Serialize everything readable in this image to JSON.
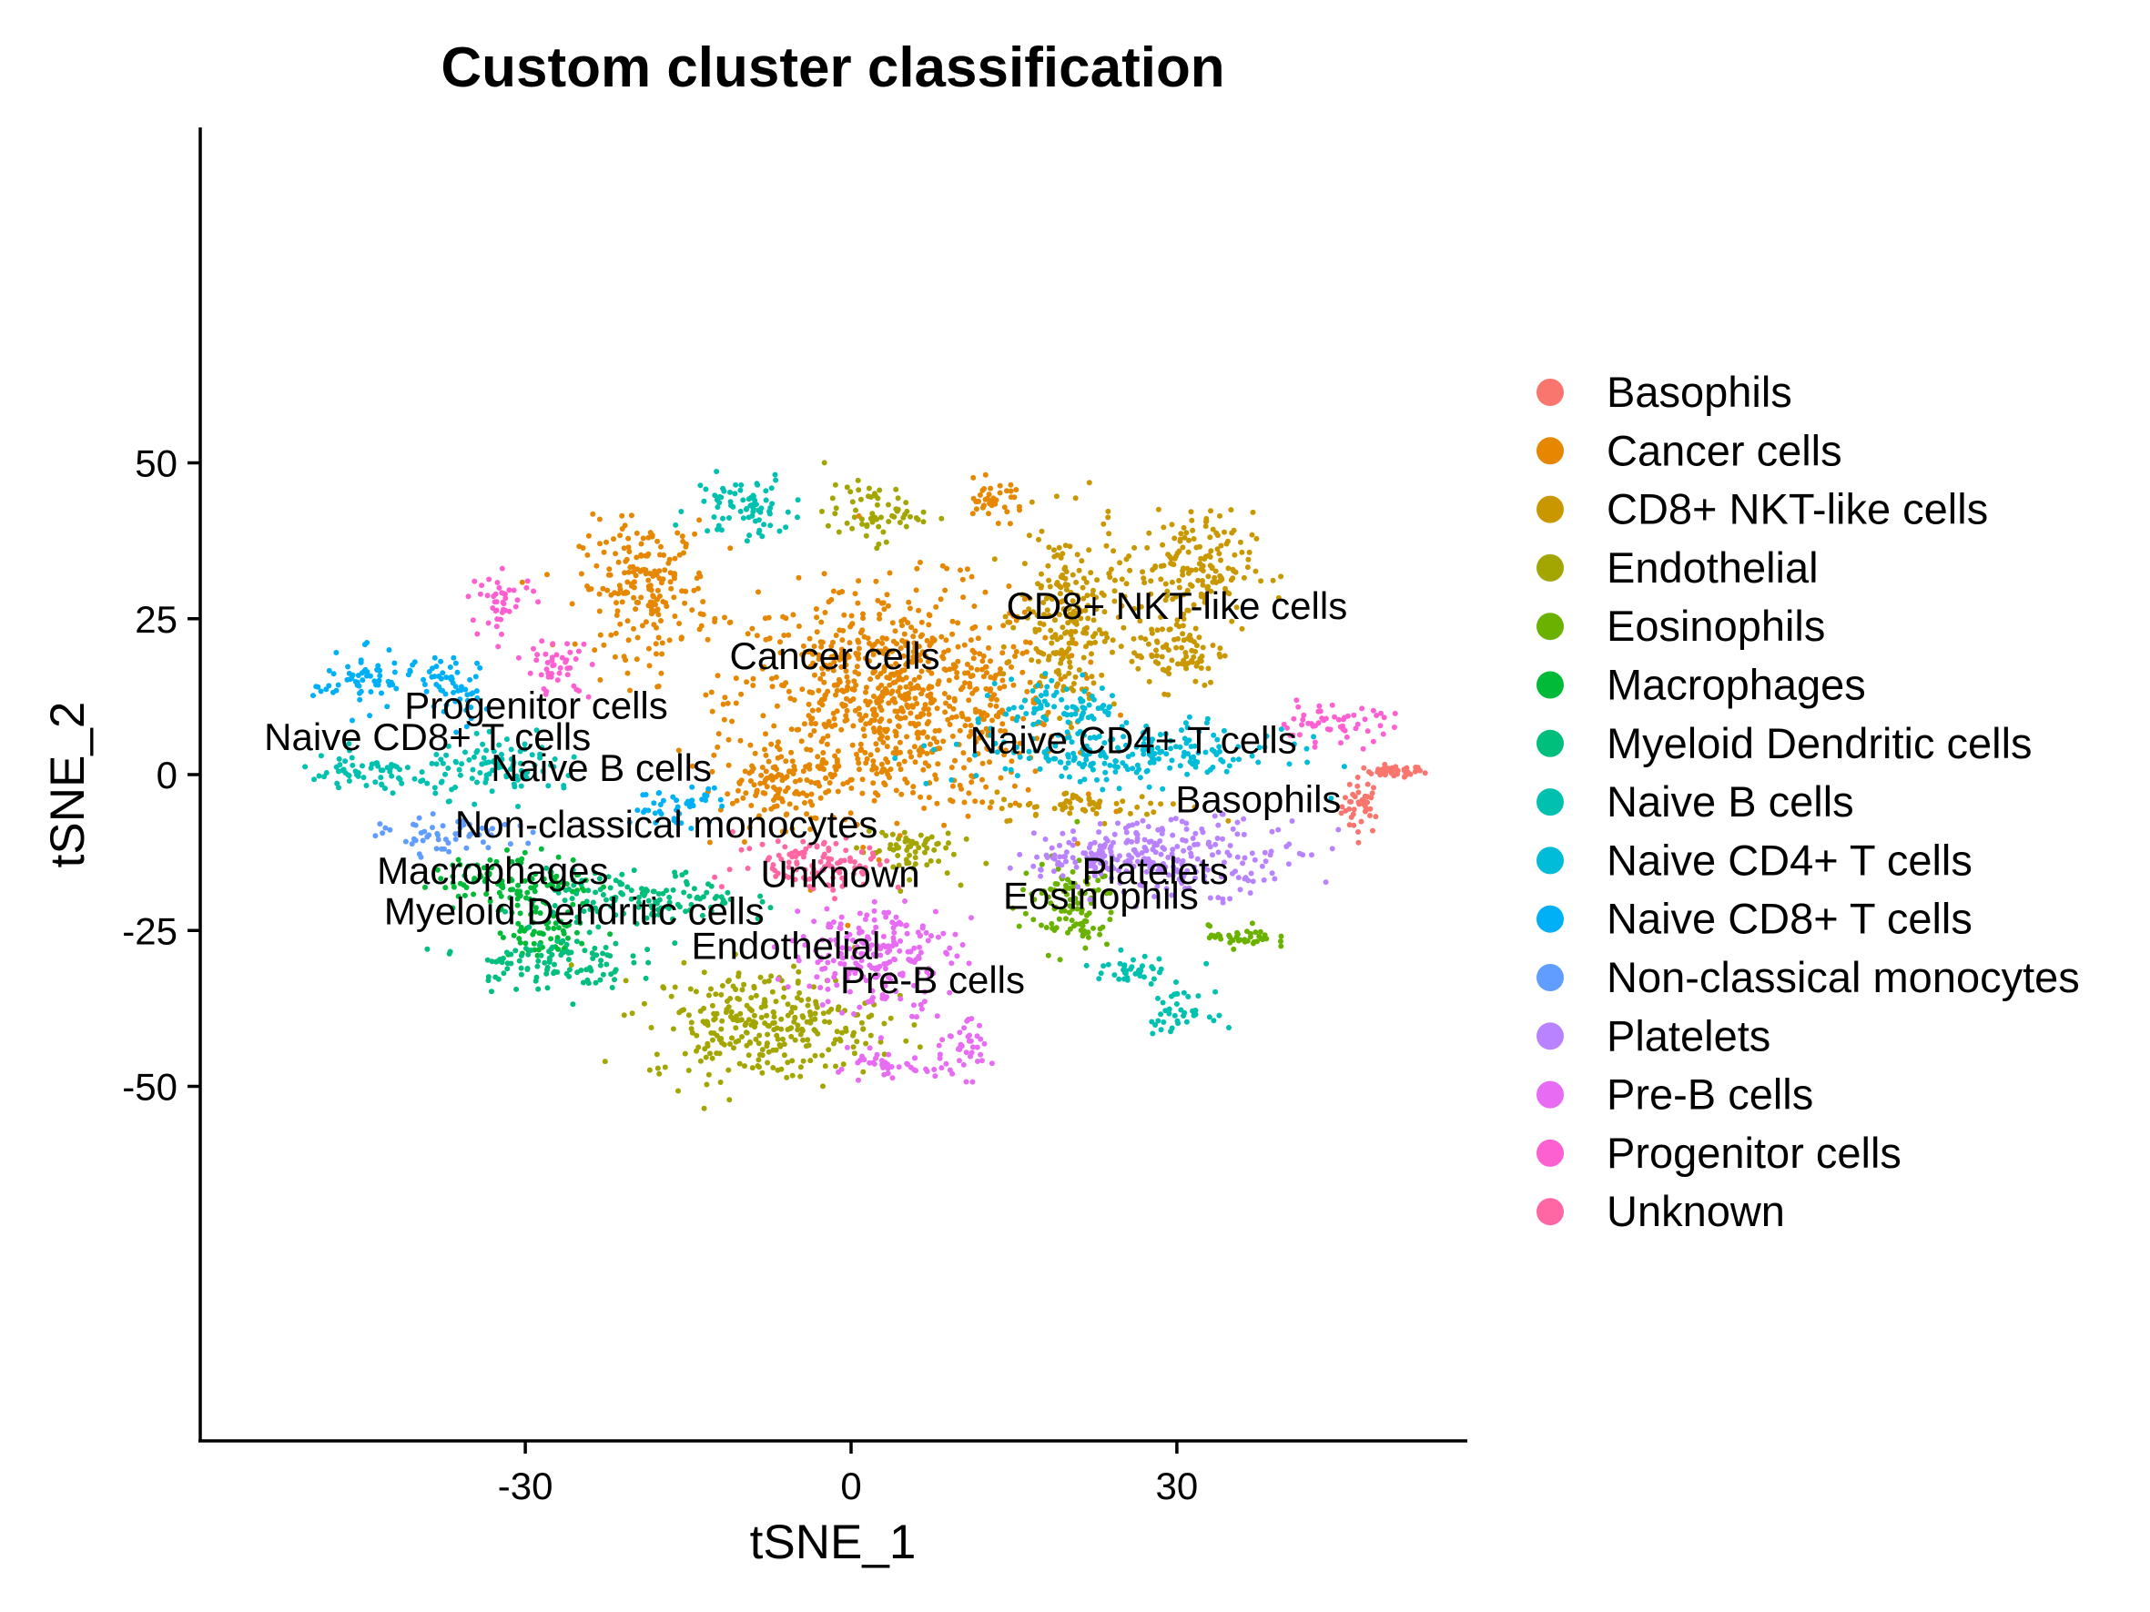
{
  "chart_data": {
    "type": "scatter",
    "title": "Custom cluster classification",
    "xlabel": "tSNE_1",
    "ylabel": "tSNE_2",
    "xlim": [
      -60,
      56
    ],
    "ylim": [
      -53,
      52
    ],
    "xticks": [
      -30,
      0,
      30
    ],
    "yticks": [
      -50,
      -25,
      0,
      25,
      50
    ],
    "xtick_labels": [
      "-30",
      "0",
      "30"
    ],
    "ytick_labels": [
      "-50",
      "-25",
      "0",
      "25",
      "50"
    ],
    "grid": false,
    "legend": "right",
    "series": [
      {
        "name": "Basophils",
        "color": "#F8766D",
        "clusters": [
          [
            47,
            -5,
            1.2,
            3
          ],
          [
            50,
            0.5,
            1.8,
            0.6
          ]
        ]
      },
      {
        "name": "Cancer cells",
        "color": "#E58700",
        "clusters": [
          [
            4,
            12,
            10,
            12
          ],
          [
            -19,
            30,
            4,
            7
          ],
          [
            -6,
            -2,
            4,
            4
          ],
          [
            13,
            44,
            2,
            2
          ]
        ]
      },
      {
        "name": "CD8+ NKT-like cells",
        "color": "#C99800",
        "clusters": [
          [
            20,
            25,
            3,
            10
          ],
          [
            31,
            33,
            4,
            6
          ],
          [
            30,
            20,
            3,
            4
          ],
          [
            22,
            -5,
            6,
            1.5
          ]
        ]
      },
      {
        "name": "Endothelial",
        "color": "#A3A500",
        "clusters": [
          [
            -8,
            -40,
            7,
            6
          ],
          [
            2,
            42,
            3,
            3
          ],
          [
            5,
            -12,
            3,
            3
          ]
        ]
      },
      {
        "name": "Eosinophils",
        "color": "#6BB100",
        "clusters": [
          [
            20,
            -21,
            3,
            5
          ],
          [
            36,
            -26,
            2,
            1.2
          ]
        ]
      },
      {
        "name": "Macrophages",
        "color": "#00BA38",
        "clusters": [
          [
            -31,
            -17,
            5,
            3
          ],
          [
            -28,
            -25,
            3,
            3
          ]
        ]
      },
      {
        "name": "Myeloid Dendritic cells",
        "color": "#00BF7D",
        "clusters": [
          [
            -28,
            -30,
            5,
            3
          ],
          [
            -19,
            -20,
            6,
            3
          ]
        ]
      },
      {
        "name": "Naive B cells",
        "color": "#00C0AF",
        "clusters": [
          [
            -32,
            1,
            5,
            3
          ],
          [
            -45,
            0,
            4,
            2
          ],
          [
            -10,
            43,
            3,
            3.5
          ],
          [
            26,
            -31,
            3,
            1.5
          ],
          [
            30,
            -38,
            2,
            2
          ]
        ]
      },
      {
        "name": "Naive CD4+ T cells",
        "color": "#00BCD8",
        "clusters": [
          [
            25,
            3,
            10,
            3
          ],
          [
            20,
            11,
            4,
            3
          ]
        ]
      },
      {
        "name": "Naive CD8+ T cells",
        "color": "#00B0F6",
        "clusters": [
          [
            -45,
            15,
            3,
            3
          ],
          [
            -37,
            14,
            2,
            4
          ],
          [
            -16,
            -5,
            3,
            2
          ]
        ]
      },
      {
        "name": "Non-classical monocytes",
        "color": "#619CFF",
        "clusters": [
          [
            -37,
            -10,
            4,
            2
          ]
        ]
      },
      {
        "name": "Platelets",
        "color": "#B983FF",
        "clusters": [
          [
            30,
            -13,
            8,
            4
          ],
          [
            22,
            -13,
            4,
            2
          ]
        ]
      },
      {
        "name": "Pre-B cells",
        "color": "#E76BF3",
        "clusters": [
          [
            2,
            -29,
            5,
            6
          ],
          [
            10,
            -44,
            2,
            3
          ],
          [
            3,
            -47,
            3,
            1.5
          ]
        ]
      },
      {
        "name": "Progenitor cells",
        "color": "#FD61D1",
        "clusters": [
          [
            44,
            8,
            4,
            2
          ],
          [
            -32,
            28,
            2,
            3
          ],
          [
            -27,
            17,
            2,
            3
          ]
        ]
      },
      {
        "name": "Unknown",
        "color": "#FF67A4",
        "clusters": [
          [
            -3,
            -14,
            5,
            3
          ]
        ]
      }
    ],
    "annotations": [
      {
        "text": "Basophils",
        "x": 37.5,
        "y": -4
      },
      {
        "text": "Cancer cells",
        "x": -1.5,
        "y": 19
      },
      {
        "text": "CD8+ NKT-like cells",
        "x": 30,
        "y": 27
      },
      {
        "text": "Endothelial",
        "x": -6,
        "y": -27.5
      },
      {
        "text": "Eosinophils",
        "x": 23,
        "y": -19.5
      },
      {
        "text": "Macrophages",
        "x": -33,
        "y": -15.5
      },
      {
        "text": "Myeloid Dendritic cells",
        "x": -25.5,
        "y": -22
      },
      {
        "text": "Naive B cells",
        "x": -23,
        "y": 1
      },
      {
        "text": "Naive CD4+ T cells",
        "x": 26,
        "y": 5.5
      },
      {
        "text": "Naive CD8+ T cells",
        "x": -39,
        "y": 6
      },
      {
        "text": "Non-classical monocytes",
        "x": -17,
        "y": -8
      },
      {
        "text": "Platelets",
        "x": 28,
        "y": -15.5
      },
      {
        "text": "Pre-B cells",
        "x": 7.5,
        "y": -33
      },
      {
        "text": "Progenitor cells",
        "x": -29,
        "y": 11
      },
      {
        "text": "Unknown",
        "x": -1,
        "y": -16
      }
    ]
  }
}
